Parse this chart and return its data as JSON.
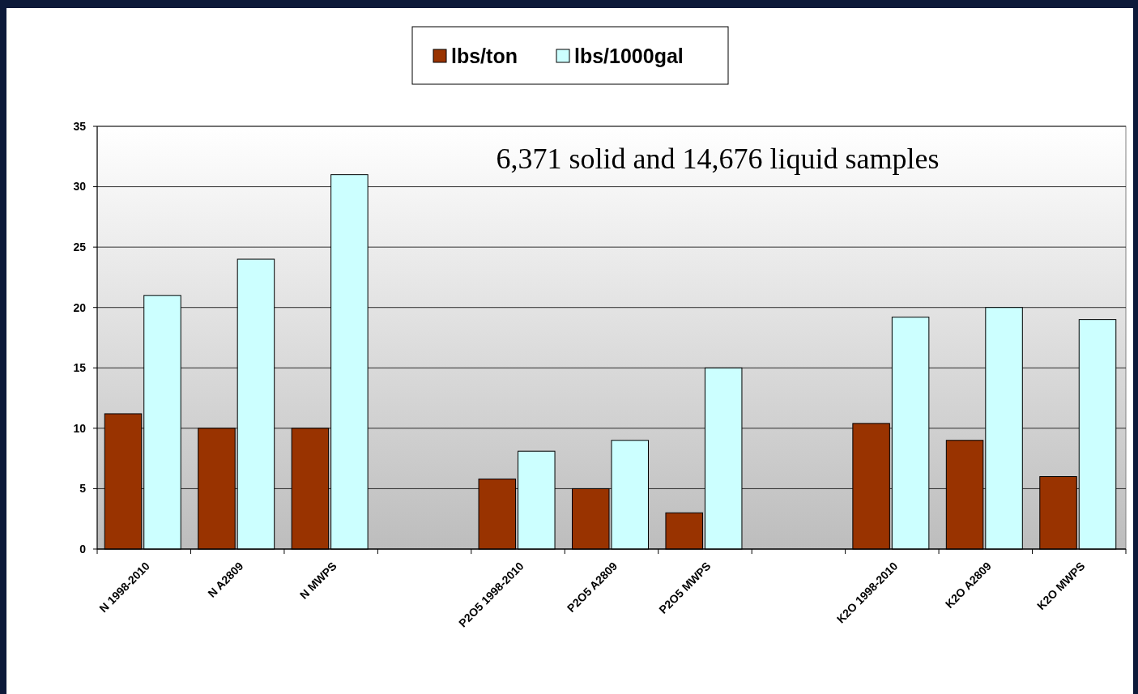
{
  "chart_data": {
    "type": "bar",
    "categories": [
      "N 1998-2010",
      "N A2809",
      "N MWPS",
      null,
      "P2O5 1998-2010",
      "P2O5 A2809",
      "P2O5 MWPS",
      null,
      "K2O 1998-2010",
      "K2O A2809",
      "K2O MWPS"
    ],
    "series": [
      {
        "name": "lbs/ton",
        "color": "#993300",
        "values": [
          11.2,
          10,
          10,
          null,
          5.8,
          5,
          3,
          null,
          10.4,
          9,
          6
        ]
      },
      {
        "name": "lbs/1000gal",
        "color": "#ccffff",
        "values": [
          21,
          24,
          31,
          null,
          8.1,
          9,
          15,
          null,
          19.2,
          20,
          19
        ]
      }
    ],
    "ylim": [
      0,
      35
    ],
    "yticks": [
      0,
      5,
      10,
      15,
      20,
      25,
      30,
      35
    ],
    "grid": "y",
    "legend": "top",
    "annotations": [
      "6,371 solid and 14,676 liquid samples"
    ]
  }
}
